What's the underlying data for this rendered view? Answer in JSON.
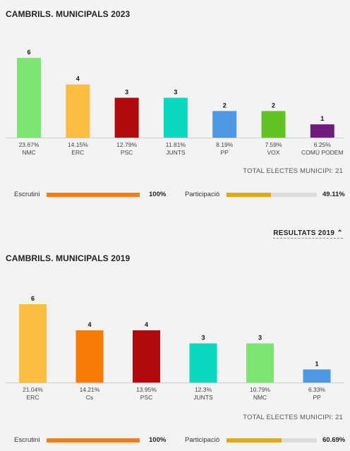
{
  "sections": [
    {
      "title": "CAMBRILS. MUNICIPALS 2023",
      "total_label": "TOTAL ELECTES MUNICIPI: 21",
      "escrutini_label": "Escrutini",
      "escrutini_value": "100%",
      "escrutini_fraction": 1.0,
      "participacio_label": "Participació",
      "participacio_value": "49.11%",
      "participacio_fraction": 0.4911
    },
    {
      "title": "CAMBRILS. MUNICIPALS 2019",
      "total_label": "TOTAL ELECTES MUNICIPI: 21",
      "escrutini_label": "Escrutini",
      "escrutini_value": "100%",
      "escrutini_fraction": 1.0,
      "participacio_label": "Participació",
      "participacio_value": "60.69%",
      "participacio_fraction": 0.6069
    }
  ],
  "toggle_label": "RESULTATS 2019",
  "colors": {
    "escrutini": "#ef7d1a",
    "participacio": "#e3a81a",
    "track": "#dddddd"
  },
  "chart_data": [
    {
      "type": "bar",
      "title": "CAMBRILS. MUNICIPALS 2023",
      "categories": [
        "NMC",
        "ERC",
        "PSC",
        "JUNTS",
        "PP",
        "VOX",
        "COMÚ PODEM"
      ],
      "values": [
        6,
        4,
        3,
        3,
        2,
        2,
        1
      ],
      "percentages": [
        "23.67%",
        "14.15%",
        "12.79%",
        "11.81%",
        "8.19%",
        "7.59%",
        "6.25%"
      ],
      "colors": [
        "#7ee472",
        "#fbbe43",
        "#b00a0f",
        "#0bd9bf",
        "#4f97e0",
        "#63c324",
        "#6d1a7a"
      ],
      "ylim": [
        0,
        6
      ]
    },
    {
      "type": "bar",
      "title": "CAMBRILS. MUNICIPALS 2019",
      "categories": [
        "ERC",
        "Cs",
        "PSC",
        "JUNTS",
        "NMC",
        "PP"
      ],
      "values": [
        6,
        4,
        4,
        3,
        3,
        1
      ],
      "percentages": [
        "21.04%",
        "14.21%",
        "13.95%",
        "12.3%",
        "10.79%",
        "6.33%"
      ],
      "colors": [
        "#fbbe43",
        "#f77b06",
        "#b00a0f",
        "#0bd9bf",
        "#7ee472",
        "#4f97e0"
      ],
      "ylim": [
        0,
        6
      ]
    }
  ]
}
